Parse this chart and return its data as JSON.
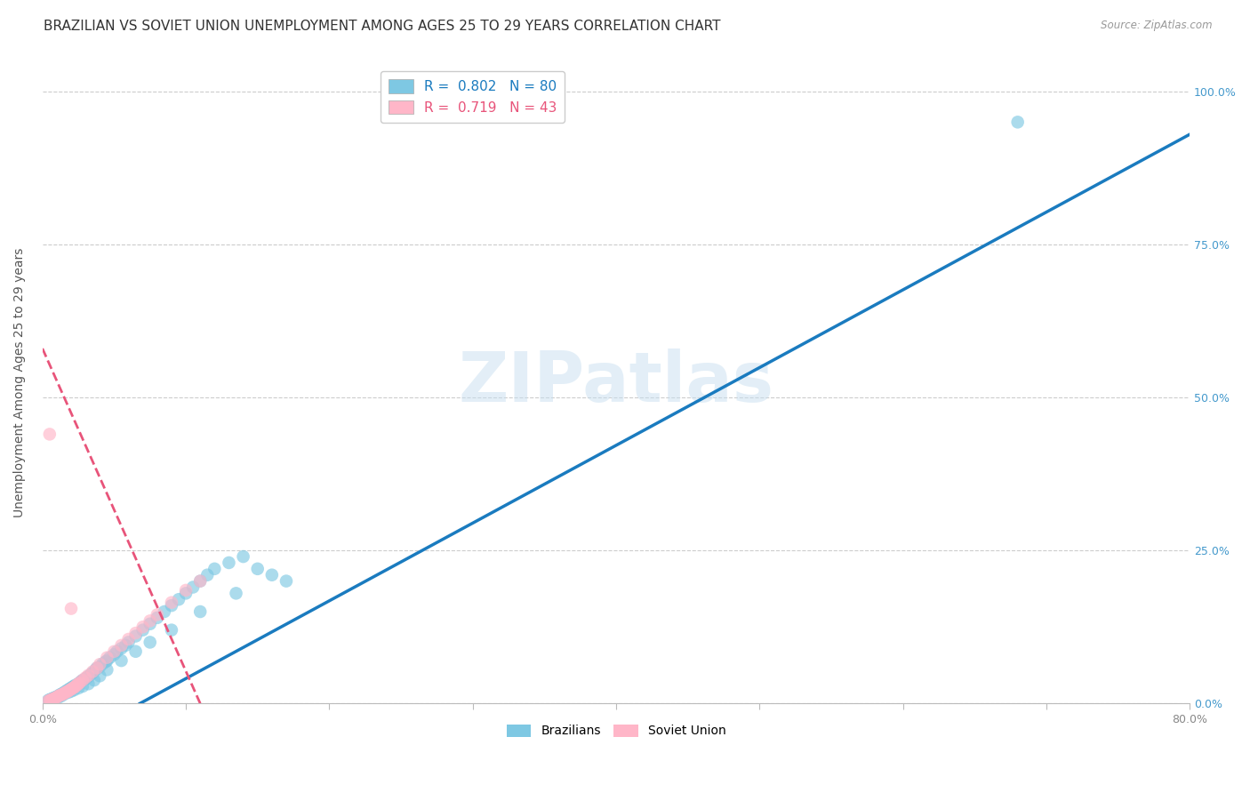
{
  "title": "BRAZILIAN VS SOVIET UNION UNEMPLOYMENT AMONG AGES 25 TO 29 YEARS CORRELATION CHART",
  "source": "Source: ZipAtlas.com",
  "ylabel": "Unemployment Among Ages 25 to 29 years",
  "xlim": [
    0.0,
    0.8
  ],
  "ylim": [
    0.0,
    1.05
  ],
  "xticks": [
    0.0,
    0.1,
    0.2,
    0.3,
    0.4,
    0.5,
    0.6,
    0.7,
    0.8
  ],
  "xticklabels": [
    "0.0%",
    "",
    "",
    "",
    "",
    "",
    "",
    "",
    "80.0%"
  ],
  "yticks": [
    0.0,
    0.25,
    0.5,
    0.75,
    1.0
  ],
  "yticklabels": [
    "0.0%",
    "25.0%",
    "50.0%",
    "75.0%",
    "100.0%"
  ],
  "brazil_R": 0.802,
  "brazil_N": 80,
  "soviet_R": 0.719,
  "soviet_N": 43,
  "brazil_color": "#7ec8e3",
  "soviet_color": "#ffb6c8",
  "brazil_line_color": "#1a7bbf",
  "soviet_line_color": "#e8547a",
  "watermark": "ZIPatlas",
  "brazil_x": [
    0.004,
    0.005,
    0.006,
    0.007,
    0.008,
    0.009,
    0.01,
    0.011,
    0.012,
    0.013,
    0.014,
    0.015,
    0.016,
    0.017,
    0.018,
    0.019,
    0.02,
    0.021,
    0.022,
    0.023,
    0.025,
    0.026,
    0.027,
    0.028,
    0.03,
    0.031,
    0.032,
    0.034,
    0.035,
    0.037,
    0.038,
    0.04,
    0.042,
    0.044,
    0.045,
    0.047,
    0.05,
    0.052,
    0.055,
    0.058,
    0.06,
    0.065,
    0.07,
    0.075,
    0.08,
    0.085,
    0.09,
    0.095,
    0.1,
    0.105,
    0.11,
    0.115,
    0.12,
    0.13,
    0.14,
    0.15,
    0.16,
    0.17,
    0.005,
    0.007,
    0.009,
    0.011,
    0.013,
    0.015,
    0.018,
    0.02,
    0.022,
    0.025,
    0.028,
    0.032,
    0.036,
    0.04,
    0.045,
    0.055,
    0.065,
    0.075,
    0.09,
    0.11,
    0.135,
    0.68
  ],
  "brazil_y": [
    0.005,
    0.006,
    0.007,
    0.008,
    0.009,
    0.01,
    0.011,
    0.012,
    0.014,
    0.015,
    0.016,
    0.018,
    0.019,
    0.021,
    0.022,
    0.024,
    0.025,
    0.027,
    0.028,
    0.03,
    0.032,
    0.034,
    0.036,
    0.038,
    0.04,
    0.042,
    0.044,
    0.048,
    0.05,
    0.055,
    0.058,
    0.06,
    0.065,
    0.068,
    0.07,
    0.075,
    0.08,
    0.085,
    0.09,
    0.095,
    0.1,
    0.11,
    0.12,
    0.13,
    0.14,
    0.15,
    0.16,
    0.17,
    0.18,
    0.19,
    0.2,
    0.21,
    0.22,
    0.23,
    0.24,
    0.22,
    0.21,
    0.2,
    0.004,
    0.006,
    0.008,
    0.01,
    0.012,
    0.015,
    0.018,
    0.02,
    0.022,
    0.025,
    0.028,
    0.032,
    0.038,
    0.045,
    0.055,
    0.07,
    0.085,
    0.1,
    0.12,
    0.15,
    0.18,
    0.95
  ],
  "soviet_x": [
    0.004,
    0.005,
    0.006,
    0.007,
    0.008,
    0.009,
    0.01,
    0.011,
    0.012,
    0.013,
    0.014,
    0.015,
    0.016,
    0.017,
    0.018,
    0.019,
    0.02,
    0.021,
    0.022,
    0.023,
    0.024,
    0.025,
    0.026,
    0.028,
    0.03,
    0.032,
    0.035,
    0.038,
    0.04,
    0.045,
    0.05,
    0.055,
    0.06,
    0.065,
    0.07,
    0.075,
    0.08,
    0.09,
    0.1,
    0.11,
    0.005,
    0.006,
    0.02
  ],
  "soviet_y": [
    0.004,
    0.005,
    0.006,
    0.007,
    0.008,
    0.009,
    0.01,
    0.012,
    0.013,
    0.014,
    0.015,
    0.016,
    0.018,
    0.019,
    0.02,
    0.022,
    0.023,
    0.025,
    0.026,
    0.028,
    0.03,
    0.032,
    0.034,
    0.038,
    0.042,
    0.046,
    0.052,
    0.058,
    0.064,
    0.075,
    0.085,
    0.095,
    0.105,
    0.115,
    0.125,
    0.135,
    0.145,
    0.165,
    0.185,
    0.2,
    0.44,
    0.004,
    0.155
  ],
  "brazil_line_x0": 0.068,
  "brazil_line_y0": 0.0,
  "brazil_line_x1": 0.8,
  "brazil_line_y1": 0.93,
  "soviet_line_x0": 0.0,
  "soviet_line_y0": 0.58,
  "soviet_line_x1": 0.11,
  "soviet_line_y1": 0.0,
  "background_color": "#ffffff",
  "grid_color": "#cccccc",
  "title_fontsize": 11,
  "axis_label_fontsize": 10,
  "tick_fontsize": 9,
  "legend_fontsize": 11,
  "right_ytick_color": "#4499cc",
  "bottom_xtick_color": "#888888"
}
